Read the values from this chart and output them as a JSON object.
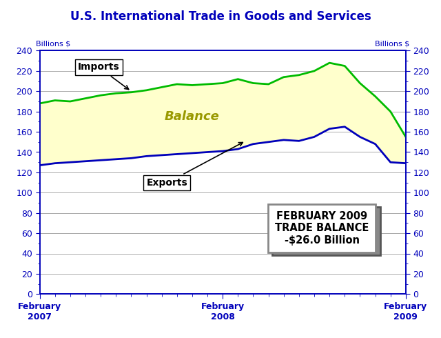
{
  "title": "U.S. International Trade in Goods and Services",
  "ylabel_left": "Billions $",
  "ylabel_right": "Billions $",
  "xlabel_ticks": [
    "February\n2007",
    "February\n2008",
    "February\n2009"
  ],
  "xlabel_tick_positions": [
    0,
    12,
    24
  ],
  "ylim": [
    0,
    240
  ],
  "yticks": [
    0,
    20,
    40,
    60,
    80,
    100,
    120,
    140,
    160,
    180,
    200,
    220,
    240
  ],
  "title_color": "#0000BB",
  "axis_color": "#0000BB",
  "imports_color": "#00BB00",
  "exports_color": "#0000BB",
  "fill_color": "#FFFFCC",
  "balance_label_color": "#999900",
  "annotation_box_line1": "FEBRUARY 2009",
  "annotation_box_line2": "TRADE BALANCE",
  "annotation_box_line3": "-$26.0 Billion",
  "imports": [
    188,
    191,
    190,
    193,
    196,
    198,
    199,
    201,
    204,
    207,
    206,
    207,
    208,
    212,
    208,
    207,
    214,
    216,
    220,
    228,
    225,
    208,
    195,
    180,
    155
  ],
  "exports": [
    127,
    129,
    130,
    131,
    132,
    133,
    134,
    136,
    137,
    138,
    139,
    140,
    141,
    143,
    148,
    150,
    152,
    151,
    155,
    163,
    165,
    155,
    148,
    130,
    129
  ]
}
